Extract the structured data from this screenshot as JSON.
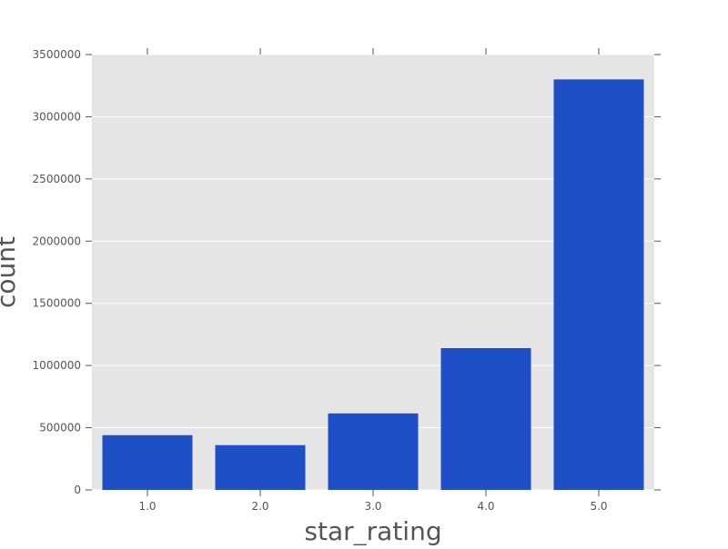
{
  "chart_data": {
    "type": "bar",
    "categories": [
      "1.0",
      "2.0",
      "3.0",
      "4.0",
      "5.0"
    ],
    "values": [
      440000,
      360000,
      615000,
      1140000,
      3300000
    ],
    "xlabel": "star_rating",
    "ylabel": "count",
    "ylim": [
      0,
      3500000
    ],
    "yticks": [
      "0",
      "500000",
      "1000000",
      "1500000",
      "2000000",
      "2500000",
      "3000000",
      "3500000"
    ],
    "grid": true,
    "legend": "none",
    "colors": {
      "bar": "#1f4fc6",
      "plot_background": "#e5e5e5",
      "grid": "#ffffff",
      "text": "#555555"
    }
  }
}
